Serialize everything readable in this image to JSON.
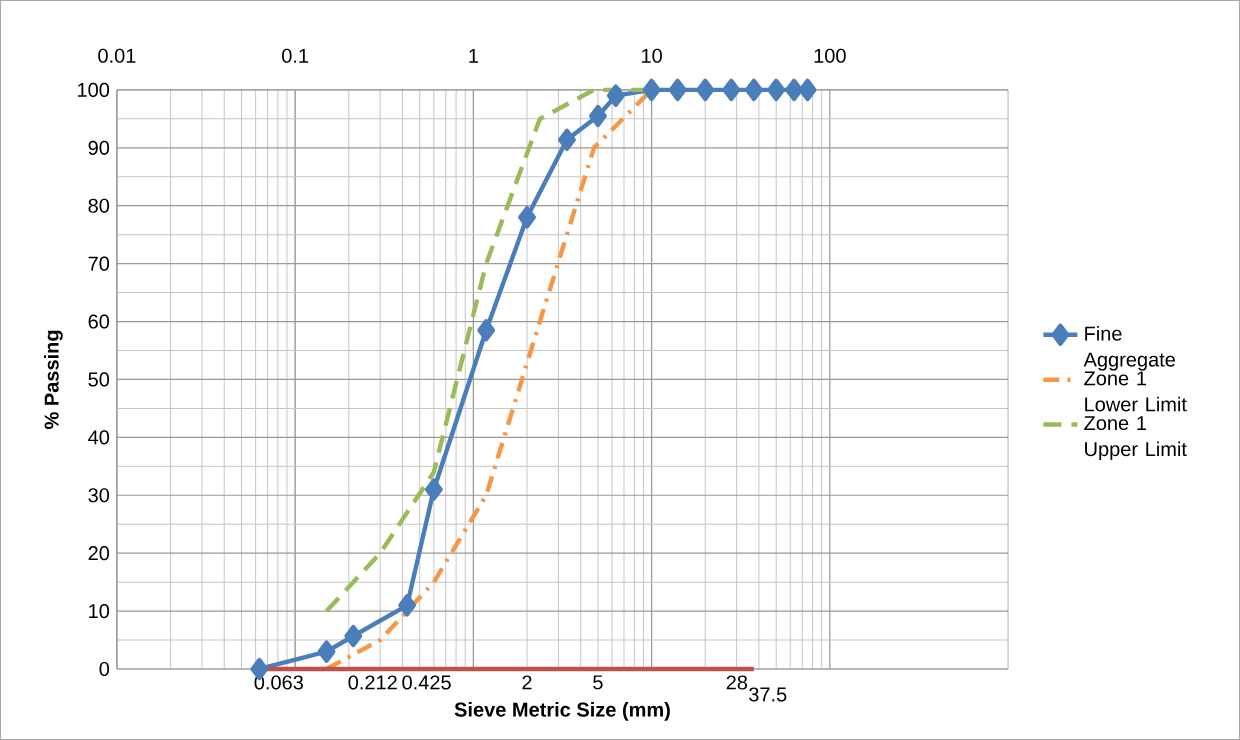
{
  "chart_data": {
    "type": "line",
    "xlabel": "Sieve Metric Size (mm)",
    "ylabel": "% Passing",
    "log": "x",
    "xlim": [
      0.01,
      1000
    ],
    "ylim": [
      0,
      100
    ],
    "xticks": [
      0.01,
      0.1,
      1,
      10,
      100
    ],
    "yticks": [
      0,
      10,
      20,
      30,
      40,
      50,
      60,
      70,
      80,
      90,
      100
    ],
    "grid": true,
    "legend": "right",
    "annotations": [
      {
        "text": "0.063",
        "x": 0.063,
        "y": 0
      },
      {
        "text": "0.212",
        "x": 0.212,
        "y": 0
      },
      {
        "text": "0.425",
        "x": 0.425,
        "y": 0
      },
      {
        "text": "2",
        "x": 2,
        "y": 0
      },
      {
        "text": "5",
        "x": 5,
        "y": 0
      },
      {
        "text": "28",
        "x": 28,
        "y": 0
      },
      {
        "text": "37.5",
        "x": 37.5,
        "y": 0
      }
    ],
    "series": [
      {
        "name": "Fine Aggregate",
        "color": "#4a7ebb",
        "marker": "diamond",
        "line_style": "solid",
        "x": [
          0.063,
          0.15,
          0.212,
          0.425,
          0.6,
          1.18,
          2,
          3.35,
          5,
          6.3,
          10,
          14,
          20,
          28,
          37.5,
          50,
          63,
          75
        ],
        "values": [
          0,
          3,
          5.7,
          11,
          31,
          58.5,
          78,
          91.4,
          95.5,
          99,
          100,
          100,
          100,
          100,
          100,
          100,
          100,
          100
        ]
      },
      {
        "name": "Zone 1 Lower Limit",
        "color": "#f79646",
        "marker": "none",
        "line_style": "dashdot",
        "x": [
          0.15,
          0.3,
          0.6,
          1.18,
          2.36,
          4.75,
          10
        ],
        "values": [
          0,
          5,
          15,
          30,
          60,
          90,
          100
        ]
      },
      {
        "name": "Zone 1 Upper Limit",
        "color": "#9bbb59",
        "marker": "none",
        "line_style": "dashed",
        "x": [
          0.15,
          0.3,
          0.6,
          1.18,
          2.36,
          4.75,
          10
        ],
        "values": [
          10,
          20,
          34,
          70,
          95,
          100,
          100
        ]
      },
      {
        "color": "#c0504d",
        "marker": "none",
        "line_style": "solid",
        "x": [
          0.063,
          0.212,
          0.425,
          2,
          5,
          28,
          37.5
        ],
        "values": [
          0,
          0,
          0,
          0,
          0,
          0,
          0
        ]
      }
    ]
  }
}
